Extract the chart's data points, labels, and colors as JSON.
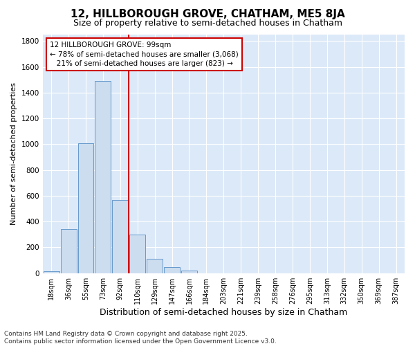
{
  "title_line1": "12, HILLBOROUGH GROVE, CHATHAM, ME5 8JA",
  "title_line2": "Size of property relative to semi-detached houses in Chatham",
  "xlabel": "Distribution of semi-detached houses by size in Chatham",
  "ylabel": "Number of semi-detached properties",
  "bin_labels": [
    "18sqm",
    "36sqm",
    "55sqm",
    "73sqm",
    "92sqm",
    "110sqm",
    "129sqm",
    "147sqm",
    "166sqm",
    "184sqm",
    "203sqm",
    "221sqm",
    "239sqm",
    "258sqm",
    "276sqm",
    "295sqm",
    "313sqm",
    "332sqm",
    "350sqm",
    "369sqm",
    "387sqm"
  ],
  "bar_values": [
    15,
    340,
    1010,
    1490,
    570,
    300,
    110,
    45,
    20,
    0,
    0,
    0,
    0,
    0,
    0,
    0,
    0,
    0,
    0,
    0,
    0
  ],
  "bar_color": "#ccddf0",
  "bar_edge_color": "#6699cc",
  "vline_x_index": 4.5,
  "vline_color": "#cc0000",
  "annotation_text": "12 HILLBOROUGH GROVE: 99sqm\n← 78% of semi-detached houses are smaller (3,068)\n   21% of semi-detached houses are larger (823) →",
  "annotation_box_facecolor": "#ffffff",
  "annotation_box_edgecolor": "#cc0000",
  "footer_line1": "Contains HM Land Registry data © Crown copyright and database right 2025.",
  "footer_line2": "Contains public sector information licensed under the Open Government Licence v3.0.",
  "ylim_max": 1850,
  "yticks": [
    0,
    200,
    400,
    600,
    800,
    1000,
    1200,
    1400,
    1600,
    1800
  ],
  "plot_bg": "#dce9f8",
  "grid_color": "#ffffff",
  "title1_fontsize": 11,
  "title2_fontsize": 9,
  "ylabel_fontsize": 8,
  "xlabel_fontsize": 9,
  "tick_fontsize": 7,
  "annot_fontsize": 7.5,
  "footer_fontsize": 6.5
}
